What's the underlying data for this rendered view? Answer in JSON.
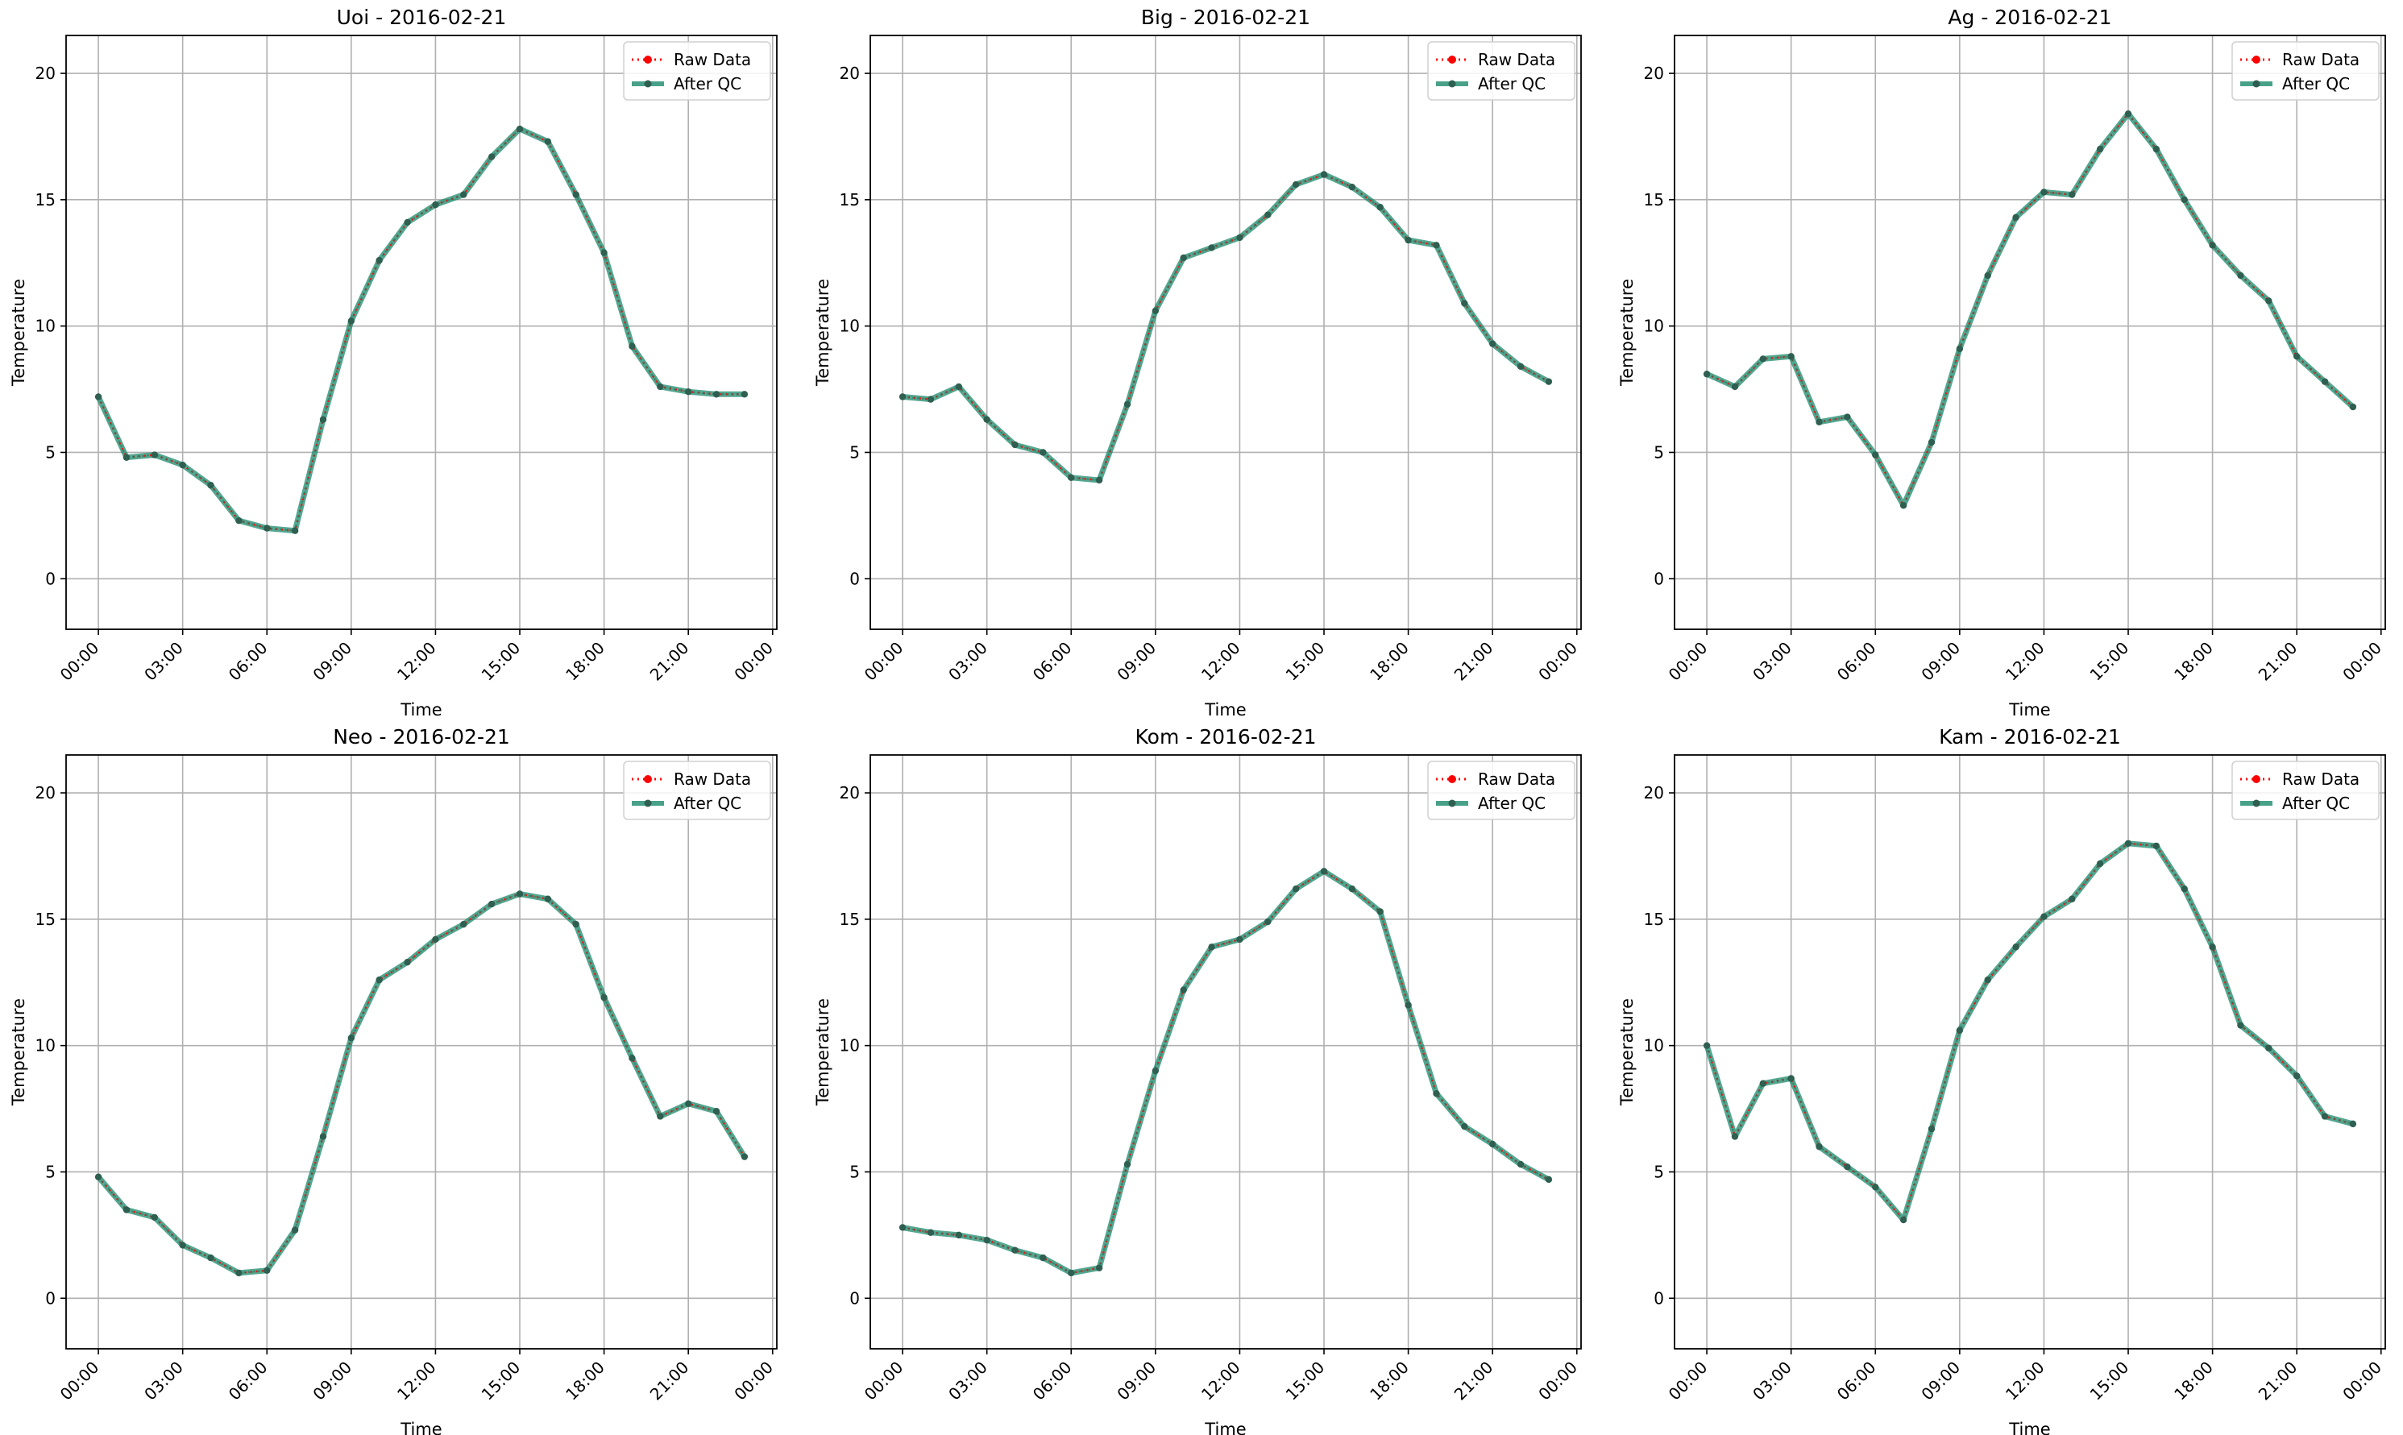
{
  "chart_data": [
    {
      "type": "line",
      "title": "Uoi - 2016-02-21",
      "xlabel": "Time",
      "ylabel": "Temperature",
      "x": [
        "00:00",
        "01:00",
        "02:00",
        "03:00",
        "04:00",
        "05:00",
        "06:00",
        "07:00",
        "08:00",
        "09:00",
        "10:00",
        "11:00",
        "12:00",
        "13:00",
        "14:00",
        "15:00",
        "16:00",
        "17:00",
        "18:00",
        "19:00",
        "20:00",
        "21:00",
        "22:00",
        "23:00"
      ],
      "xticks": [
        "00:00",
        "03:00",
        "06:00",
        "09:00",
        "12:00",
        "15:00",
        "18:00",
        "21:00",
        "00:00"
      ],
      "yticks": [
        0,
        5,
        10,
        15,
        20
      ],
      "ylim": [
        -2,
        21.5
      ],
      "grid": true,
      "legend_position": "top-right",
      "series": [
        {
          "name": "Raw Data",
          "color": "#ff0000",
          "style": "dotted",
          "values": [
            7.2,
            4.8,
            4.9,
            4.5,
            3.7,
            2.3,
            2.0,
            1.9,
            6.3,
            10.2,
            12.6,
            14.1,
            14.8,
            15.2,
            16.7,
            17.8,
            17.3,
            15.2,
            12.9,
            9.2,
            7.6,
            7.4,
            7.3,
            7.3
          ]
        },
        {
          "name": "After QC",
          "color": "#1a8a6b",
          "style": "solid",
          "values": [
            7.2,
            4.8,
            4.9,
            4.5,
            3.7,
            2.3,
            2.0,
            1.9,
            6.3,
            10.2,
            12.6,
            14.1,
            14.8,
            15.2,
            16.7,
            17.8,
            17.3,
            15.2,
            12.9,
            9.2,
            7.6,
            7.4,
            7.3,
            7.3
          ]
        }
      ]
    },
    {
      "type": "line",
      "title": "Big - 2016-02-21",
      "xlabel": "Time",
      "ylabel": "Temperature",
      "x": [
        "00:00",
        "01:00",
        "02:00",
        "03:00",
        "04:00",
        "05:00",
        "06:00",
        "07:00",
        "08:00",
        "09:00",
        "10:00",
        "11:00",
        "12:00",
        "13:00",
        "14:00",
        "15:00",
        "16:00",
        "17:00",
        "18:00",
        "19:00",
        "20:00",
        "21:00",
        "22:00",
        "23:00"
      ],
      "xticks": [
        "00:00",
        "03:00",
        "06:00",
        "09:00",
        "12:00",
        "15:00",
        "18:00",
        "21:00",
        "00:00"
      ],
      "yticks": [
        0,
        5,
        10,
        15,
        20
      ],
      "ylim": [
        -2,
        21.5
      ],
      "grid": true,
      "legend_position": "top-right",
      "series": [
        {
          "name": "Raw Data",
          "color": "#ff0000",
          "style": "dotted",
          "values": [
            7.2,
            7.1,
            7.6,
            6.3,
            5.3,
            5.0,
            4.0,
            3.9,
            6.9,
            10.6,
            12.7,
            13.1,
            13.5,
            14.4,
            15.6,
            16.0,
            15.5,
            14.7,
            13.4,
            13.2,
            10.9,
            9.3,
            8.4,
            7.8
          ]
        },
        {
          "name": "After QC",
          "color": "#1a8a6b",
          "style": "solid",
          "values": [
            7.2,
            7.1,
            7.6,
            6.3,
            5.3,
            5.0,
            4.0,
            3.9,
            6.9,
            10.6,
            12.7,
            13.1,
            13.5,
            14.4,
            15.6,
            16.0,
            15.5,
            14.7,
            13.4,
            13.2,
            10.9,
            9.3,
            8.4,
            7.8
          ]
        }
      ]
    },
    {
      "type": "line",
      "title": "Ag - 2016-02-21",
      "xlabel": "Time",
      "ylabel": "Temperature",
      "x": [
        "00:00",
        "01:00",
        "02:00",
        "03:00",
        "04:00",
        "05:00",
        "06:00",
        "07:00",
        "08:00",
        "09:00",
        "10:00",
        "11:00",
        "12:00",
        "13:00",
        "14:00",
        "15:00",
        "16:00",
        "17:00",
        "18:00",
        "19:00",
        "20:00",
        "21:00",
        "22:00",
        "23:00"
      ],
      "xticks": [
        "00:00",
        "03:00",
        "06:00",
        "09:00",
        "12:00",
        "15:00",
        "18:00",
        "21:00",
        "00:00"
      ],
      "yticks": [
        0,
        5,
        10,
        15,
        20
      ],
      "ylim": [
        -2,
        21.5
      ],
      "grid": true,
      "legend_position": "top-right",
      "series": [
        {
          "name": "Raw Data",
          "color": "#ff0000",
          "style": "dotted",
          "values": [
            8.1,
            7.6,
            8.7,
            8.8,
            6.2,
            6.4,
            4.9,
            2.9,
            5.4,
            9.1,
            12.0,
            14.3,
            15.3,
            15.2,
            17.0,
            18.4,
            17.0,
            15.0,
            13.2,
            12.0,
            11.0,
            8.8,
            7.8,
            6.8
          ]
        },
        {
          "name": "After QC",
          "color": "#1a8a6b",
          "style": "solid",
          "values": [
            8.1,
            7.6,
            8.7,
            8.8,
            6.2,
            6.4,
            4.9,
            2.9,
            5.4,
            9.1,
            12.0,
            14.3,
            15.3,
            15.2,
            17.0,
            18.4,
            17.0,
            15.0,
            13.2,
            12.0,
            11.0,
            8.8,
            7.8,
            6.8
          ]
        }
      ]
    },
    {
      "type": "line",
      "title": "Neo - 2016-02-21",
      "xlabel": "Time",
      "ylabel": "Temperature",
      "x": [
        "00:00",
        "01:00",
        "02:00",
        "03:00",
        "04:00",
        "05:00",
        "06:00",
        "07:00",
        "08:00",
        "09:00",
        "10:00",
        "11:00",
        "12:00",
        "13:00",
        "14:00",
        "15:00",
        "16:00",
        "17:00",
        "18:00",
        "19:00",
        "20:00",
        "21:00",
        "22:00",
        "23:00"
      ],
      "xticks": [
        "00:00",
        "03:00",
        "06:00",
        "09:00",
        "12:00",
        "15:00",
        "18:00",
        "21:00",
        "00:00"
      ],
      "yticks": [
        0,
        5,
        10,
        15,
        20
      ],
      "ylim": [
        -2,
        21.5
      ],
      "grid": true,
      "legend_position": "top-right",
      "series": [
        {
          "name": "Raw Data",
          "color": "#ff0000",
          "style": "dotted",
          "values": [
            4.8,
            3.5,
            3.2,
            2.1,
            1.6,
            1.0,
            1.1,
            2.7,
            6.4,
            10.3,
            12.6,
            13.3,
            14.2,
            14.8,
            15.6,
            16.0,
            15.8,
            14.8,
            11.9,
            9.5,
            7.2,
            7.7,
            7.4,
            5.6
          ]
        },
        {
          "name": "After QC",
          "color": "#1a8a6b",
          "style": "solid",
          "values": [
            4.8,
            3.5,
            3.2,
            2.1,
            1.6,
            1.0,
            1.1,
            2.7,
            6.4,
            10.3,
            12.6,
            13.3,
            14.2,
            14.8,
            15.6,
            16.0,
            15.8,
            14.8,
            11.9,
            9.5,
            7.2,
            7.7,
            7.4,
            5.6
          ]
        }
      ]
    },
    {
      "type": "line",
      "title": "Kom - 2016-02-21",
      "xlabel": "Time",
      "ylabel": "Temperature",
      "x": [
        "00:00",
        "01:00",
        "02:00",
        "03:00",
        "04:00",
        "05:00",
        "06:00",
        "07:00",
        "08:00",
        "09:00",
        "10:00",
        "11:00",
        "12:00",
        "13:00",
        "14:00",
        "15:00",
        "16:00",
        "17:00",
        "18:00",
        "19:00",
        "20:00",
        "21:00",
        "22:00",
        "23:00"
      ],
      "xticks": [
        "00:00",
        "03:00",
        "06:00",
        "09:00",
        "12:00",
        "15:00",
        "18:00",
        "21:00",
        "00:00"
      ],
      "yticks": [
        0,
        5,
        10,
        15,
        20
      ],
      "ylim": [
        -2,
        21.5
      ],
      "grid": true,
      "legend_position": "top-right",
      "series": [
        {
          "name": "Raw Data",
          "color": "#ff0000",
          "style": "dotted",
          "values": [
            2.8,
            2.6,
            2.5,
            2.3,
            1.9,
            1.6,
            1.0,
            1.2,
            5.3,
            9.0,
            12.2,
            13.9,
            14.2,
            14.9,
            16.2,
            16.9,
            16.2,
            15.3,
            11.6,
            8.1,
            6.8,
            6.1,
            5.3,
            4.7
          ]
        },
        {
          "name": "After QC",
          "color": "#1a8a6b",
          "style": "solid",
          "values": [
            2.8,
            2.6,
            2.5,
            2.3,
            1.9,
            1.6,
            1.0,
            1.2,
            5.3,
            9.0,
            12.2,
            13.9,
            14.2,
            14.9,
            16.2,
            16.9,
            16.2,
            15.3,
            11.6,
            8.1,
            6.8,
            6.1,
            5.3,
            4.7
          ]
        }
      ]
    },
    {
      "type": "line",
      "title": "Kam - 2016-02-21",
      "xlabel": "Time",
      "ylabel": "Temperature",
      "x": [
        "00:00",
        "01:00",
        "02:00",
        "03:00",
        "04:00",
        "05:00",
        "06:00",
        "07:00",
        "08:00",
        "09:00",
        "10:00",
        "11:00",
        "12:00",
        "13:00",
        "14:00",
        "15:00",
        "16:00",
        "17:00",
        "18:00",
        "19:00",
        "20:00",
        "21:00",
        "22:00",
        "23:00"
      ],
      "xticks": [
        "00:00",
        "03:00",
        "06:00",
        "09:00",
        "12:00",
        "15:00",
        "18:00",
        "21:00",
        "00:00"
      ],
      "yticks": [
        0,
        5,
        10,
        15,
        20
      ],
      "ylim": [
        -2,
        21.5
      ],
      "grid": true,
      "legend_position": "top-right",
      "series": [
        {
          "name": "Raw Data",
          "color": "#ff0000",
          "style": "dotted",
          "values": [
            10.0,
            6.4,
            8.5,
            8.7,
            6.0,
            5.2,
            4.4,
            3.1,
            6.7,
            10.6,
            12.6,
            13.9,
            15.1,
            15.8,
            17.2,
            18.0,
            17.9,
            16.2,
            13.9,
            10.8,
            9.9,
            8.8,
            7.2,
            6.9
          ]
        },
        {
          "name": "After QC",
          "color": "#1a8a6b",
          "style": "solid",
          "values": [
            10.0,
            6.4,
            8.5,
            8.7,
            6.0,
            5.2,
            4.4,
            3.1,
            6.7,
            10.6,
            12.6,
            13.9,
            15.1,
            15.8,
            17.2,
            18.0,
            17.9,
            16.2,
            13.9,
            10.8,
            9.9,
            8.8,
            7.2,
            6.9
          ]
        }
      ]
    }
  ]
}
